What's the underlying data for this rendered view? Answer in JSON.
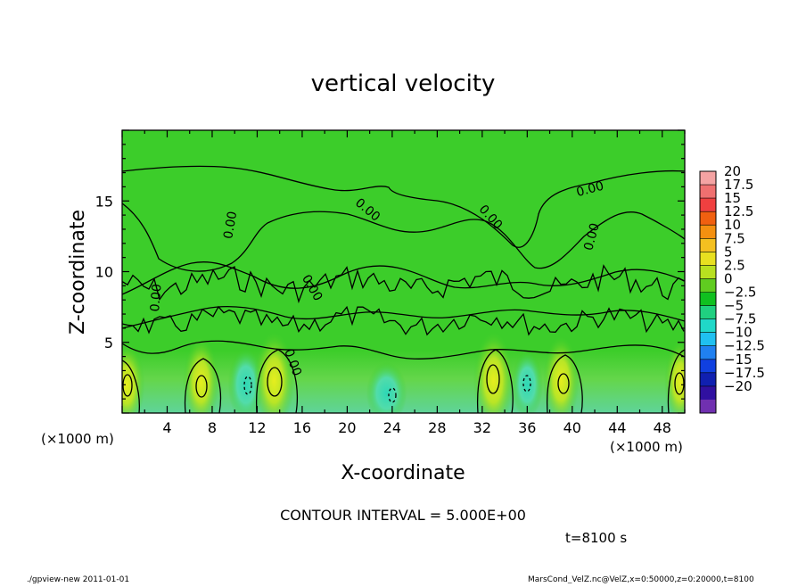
{
  "chart_data": {
    "type": "heatmap",
    "title": "vertical velocity",
    "xlabel": "X-coordinate",
    "ylabel": "Z-coordinate",
    "x_unit_left": "(×1000 m)",
    "x_unit_right": "(×1000 m)",
    "x_ticks": [
      "4",
      "8",
      "12",
      "16",
      "20",
      "24",
      "28",
      "32",
      "36",
      "40",
      "44",
      "48"
    ],
    "y_ticks": [
      "5",
      "10",
      "15"
    ],
    "xlim": [
      0,
      50
    ],
    "ylim": [
      0,
      20
    ],
    "colorbar": {
      "labels": [
        "20",
        "17.5",
        "15",
        "12.5",
        "10",
        "7.5",
        "5",
        "2.5",
        "0",
        "−2.5",
        "−5",
        "−7.5",
        "−10",
        "−12.5",
        "−15",
        "−17.5",
        "−20"
      ],
      "colors": [
        "#f4a3a3",
        "#ef7070",
        "#f04040",
        "#f06010",
        "#f49010",
        "#f4c020",
        "#e8e020",
        "#b8e020",
        "#60cc20",
        "#10c020",
        "#20d080",
        "#20d8c8",
        "#20c0f0",
        "#2080f0",
        "#1040e0",
        "#1020b0",
        "#3010a0",
        "#7030b0"
      ]
    },
    "contour_label": "0.00",
    "warm_cells": [
      {
        "x": 0.4,
        "z": 2.0,
        "wx": 1.6,
        "wz": 3.0
      },
      {
        "x": 7.0,
        "z": 2.2,
        "wx": 1.6,
        "wz": 3.2
      },
      {
        "x": 13.5,
        "z": 2.3,
        "wx": 1.8,
        "wz": 3.5
      },
      {
        "x": 33.0,
        "z": 2.3,
        "wx": 1.8,
        "wz": 3.5
      },
      {
        "x": 39.0,
        "z": 2.3,
        "wx": 1.6,
        "wz": 3.2
      },
      {
        "x": 49.6,
        "z": 2.2,
        "wx": 1.4,
        "wz": 3.0
      }
    ],
    "cool_cells": [
      {
        "x": 11.0,
        "z": 2.0,
        "wx": 1.6,
        "wz": 2.6
      },
      {
        "x": 23.5,
        "z": 1.4,
        "wx": 1.8,
        "wz": 2.2
      },
      {
        "x": 36.0,
        "z": 2.0,
        "wx": 1.4,
        "wz": 2.4
      }
    ]
  },
  "footer": {
    "contour_interval": "CONTOUR INTERVAL = 5.000E+00",
    "time": "t=8100 s",
    "left_note": "./gpview-new  2011-01-01",
    "right_note": "MarsCond_VelZ.nc@VelZ,x=0:50000,z=0:20000,t=8100"
  }
}
